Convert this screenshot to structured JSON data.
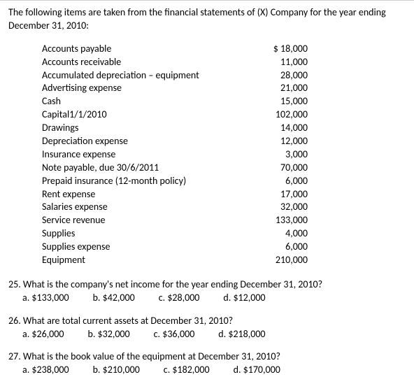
{
  "intro": "The following items are taken from the financial statements of (X) Company for the year ending December 31, 2010:",
  "items": [
    {
      "label": "Accounts payable",
      "value": "$  18,000"
    },
    {
      "label": "Accounts receivable",
      "value": "11,000"
    },
    {
      "label": "Accumulated depreciation – equipment",
      "value": "28,000"
    },
    {
      "label": "Advertising expense",
      "value": "21,000"
    },
    {
      "label": "Cash",
      "value": "15,000"
    },
    {
      "label": "Capital1/1/2010",
      "value": "102,000"
    },
    {
      "label": "Drawings",
      "value": "14,000"
    },
    {
      "label": "Depreciation expense",
      "value": "12,000"
    },
    {
      "label": "Insurance expense",
      "value": "3,000"
    },
    {
      "label": "Note payable, due 30/6/2011",
      "value": "70,000"
    },
    {
      "label": "Prepaid insurance (12-month policy)",
      "value": "6,000"
    },
    {
      "label": "Rent expense",
      "value": "17,000"
    },
    {
      "label": "Salaries expense",
      "value": "32,000"
    },
    {
      "label": "Service revenue",
      "value": "133,000"
    },
    {
      "label": "Supplies",
      "value": "4,000"
    },
    {
      "label": "Supplies expense",
      "value": "6,000"
    },
    {
      "label": "Equipment",
      "value": "210,000"
    }
  ],
  "questions": [
    {
      "text": "25. What is the company's net income for the year ending December 31, 2010?",
      "options": [
        "a. $133,000",
        "b. $42,000",
        "c. $28,000",
        "d. $12,000"
      ]
    },
    {
      "text": "26. What are total current assets at December 31, 2010?",
      "options": [
        "a. $26,000",
        "b. $32,000",
        "c. $36,000",
        "d. $218,000"
      ]
    },
    {
      "text": "27. What is the book value of the equipment at December 31, 2010?",
      "options": [
        "a. $238,000",
        "b. $210,000",
        "c. $182,000",
        "d. $170,000"
      ]
    }
  ]
}
